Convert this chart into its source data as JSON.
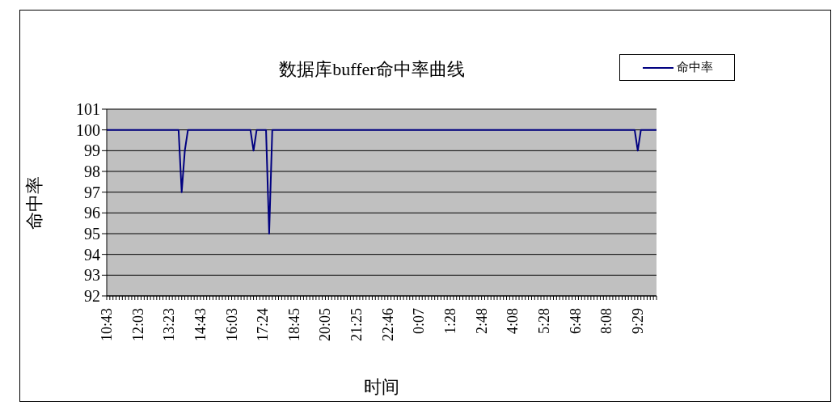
{
  "chart_data": {
    "type": "line",
    "title": "数据库buffer命中率曲线",
    "xlabel": "时间",
    "ylabel": "命中率",
    "categories": [
      "10:43",
      null,
      null,
      null,
      null,
      null,
      null,
      null,
      null,
      null,
      "12:03",
      null,
      null,
      null,
      null,
      null,
      null,
      null,
      null,
      null,
      "13:23",
      null,
      null,
      null,
      null,
      null,
      null,
      null,
      null,
      null,
      "14:43",
      null,
      null,
      null,
      null,
      null,
      null,
      null,
      null,
      null,
      "16:03",
      null,
      null,
      null,
      null,
      null,
      null,
      null,
      null,
      null,
      "17:24",
      null,
      null,
      null,
      null,
      null,
      null,
      null,
      null,
      null,
      "18:45",
      null,
      null,
      null,
      null,
      null,
      null,
      null,
      null,
      null,
      "20:05",
      null,
      null,
      null,
      null,
      null,
      null,
      null,
      null,
      null,
      "21:25",
      null,
      null,
      null,
      null,
      null,
      null,
      null,
      null,
      null,
      "22:46",
      null,
      null,
      null,
      null,
      null,
      null,
      null,
      null,
      null,
      "0:07",
      null,
      null,
      null,
      null,
      null,
      null,
      null,
      null,
      null,
      "1:28",
      null,
      null,
      null,
      null,
      null,
      null,
      null,
      null,
      null,
      "2:48",
      null,
      null,
      null,
      null,
      null,
      null,
      null,
      null,
      null,
      "4:08",
      null,
      null,
      null,
      null,
      null,
      null,
      null,
      null,
      null,
      "5:28",
      null,
      null,
      null,
      null,
      null,
      null,
      null,
      null,
      null,
      "6:48",
      null,
      null,
      null,
      null,
      null,
      null,
      null,
      null,
      null,
      "8:08",
      null,
      null,
      null,
      null,
      null,
      null,
      null,
      null,
      null,
      "9:29",
      null,
      null,
      null,
      null,
      null,
      null
    ],
    "series": [
      {
        "name": "命中率",
        "color": "#000080",
        "values": [
          100,
          100,
          100,
          100,
          100,
          100,
          100,
          100,
          100,
          100,
          100,
          100,
          100,
          100,
          100,
          100,
          100,
          100,
          100,
          100,
          100,
          100,
          100,
          100,
          97,
          99,
          100,
          100,
          100,
          100,
          100,
          100,
          100,
          100,
          100,
          100,
          100,
          100,
          100,
          100,
          100,
          100,
          100,
          100,
          100,
          100,
          100,
          99,
          100,
          100,
          100,
          100,
          95,
          100,
          100,
          100,
          100,
          100,
          100,
          100,
          100,
          100,
          100,
          100,
          100,
          100,
          100,
          100,
          100,
          100,
          100,
          100,
          100,
          100,
          100,
          100,
          100,
          100,
          100,
          100,
          100,
          100,
          100,
          100,
          100,
          100,
          100,
          100,
          100,
          100,
          100,
          100,
          100,
          100,
          100,
          100,
          100,
          100,
          100,
          100,
          100,
          100,
          100,
          100,
          100,
          100,
          100,
          100,
          100,
          100,
          100,
          100,
          100,
          100,
          100,
          100,
          100,
          100,
          100,
          100,
          100,
          100,
          100,
          100,
          100,
          100,
          100,
          100,
          100,
          100,
          100,
          100,
          100,
          100,
          100,
          100,
          100,
          100,
          100,
          100,
          100,
          100,
          100,
          100,
          100,
          100,
          100,
          100,
          100,
          100,
          100,
          100,
          100,
          100,
          100,
          100,
          100,
          100,
          100,
          100,
          100,
          100,
          100,
          100,
          100,
          100,
          100,
          100,
          100,
          100,
          99,
          100,
          100,
          100,
          100,
          100,
          100
        ]
      }
    ],
    "ylim": [
      92,
      101
    ],
    "yticks": [
      92,
      93,
      94,
      95,
      96,
      97,
      98,
      99,
      100,
      101
    ],
    "grid": "y",
    "legend": "top right",
    "marker": "none",
    "line_style": "solid"
  }
}
